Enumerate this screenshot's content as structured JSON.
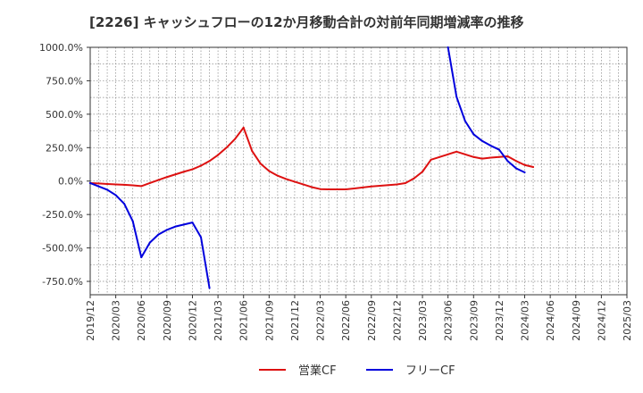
{
  "chart_data": {
    "type": "line",
    "title": "[2226]  キャッシュフローの12か月移動合計の対前年同期増減率の推移",
    "xlabel": "",
    "ylabel": "",
    "ylim": [
      -850,
      1000
    ],
    "yticks": [
      1000,
      750,
      500,
      250,
      0,
      -250,
      -500,
      -750
    ],
    "ytick_labels": [
      "1000.0%",
      "750.0%",
      "500.0%",
      "250.0%",
      "0.0%",
      "-250.0%",
      "-500.0%",
      "-750.0%"
    ],
    "x_start": "2019/12",
    "x_end": "2025/03",
    "xtick_labels": [
      "2019/12",
      "2020/03",
      "2020/06",
      "2020/09",
      "2020/12",
      "2021/03",
      "2021/06",
      "2021/09",
      "2021/12",
      "2022/03",
      "2022/06",
      "2022/09",
      "2022/12",
      "2023/03",
      "2023/06",
      "2023/09",
      "2023/12",
      "2024/03",
      "2024/06",
      "2024/09",
      "2024/12",
      "2025/03"
    ],
    "grid": true,
    "legend_position": "bottom-center",
    "series": [
      {
        "name": "営業CF",
        "color": "#dd1111",
        "start": "2019/12",
        "values": [
          -15,
          -18,
          -22,
          -25,
          -28,
          -32,
          -38,
          -15,
          8,
          30,
          50,
          70,
          88,
          115,
          150,
          195,
          250,
          315,
          400,
          225,
          130,
          75,
          40,
          15,
          -5,
          -25,
          -45,
          -60,
          -62,
          -62,
          -62,
          -55,
          -48,
          -40,
          -35,
          -30,
          -25,
          -15,
          20,
          70,
          160,
          180,
          200,
          220,
          200,
          180,
          168,
          175,
          180,
          185,
          150,
          120,
          105
        ]
      },
      {
        "name": "フリーCF",
        "color": "#0000dd",
        "start": "2019/12",
        "values": [
          -15,
          -40,
          -65,
          -105,
          -170,
          -300,
          -570,
          -460,
          -400,
          -365,
          -340,
          -325,
          -310,
          -420,
          -800,
          null,
          null,
          null,
          null,
          null,
          null,
          null,
          null,
          null,
          null,
          null,
          null,
          null,
          null,
          null,
          null,
          null,
          null,
          null,
          null,
          null,
          null,
          null,
          null,
          null,
          null,
          null,
          1000,
          630,
          450,
          350,
          300,
          265,
          235,
          150,
          95,
          65
        ]
      }
    ]
  }
}
